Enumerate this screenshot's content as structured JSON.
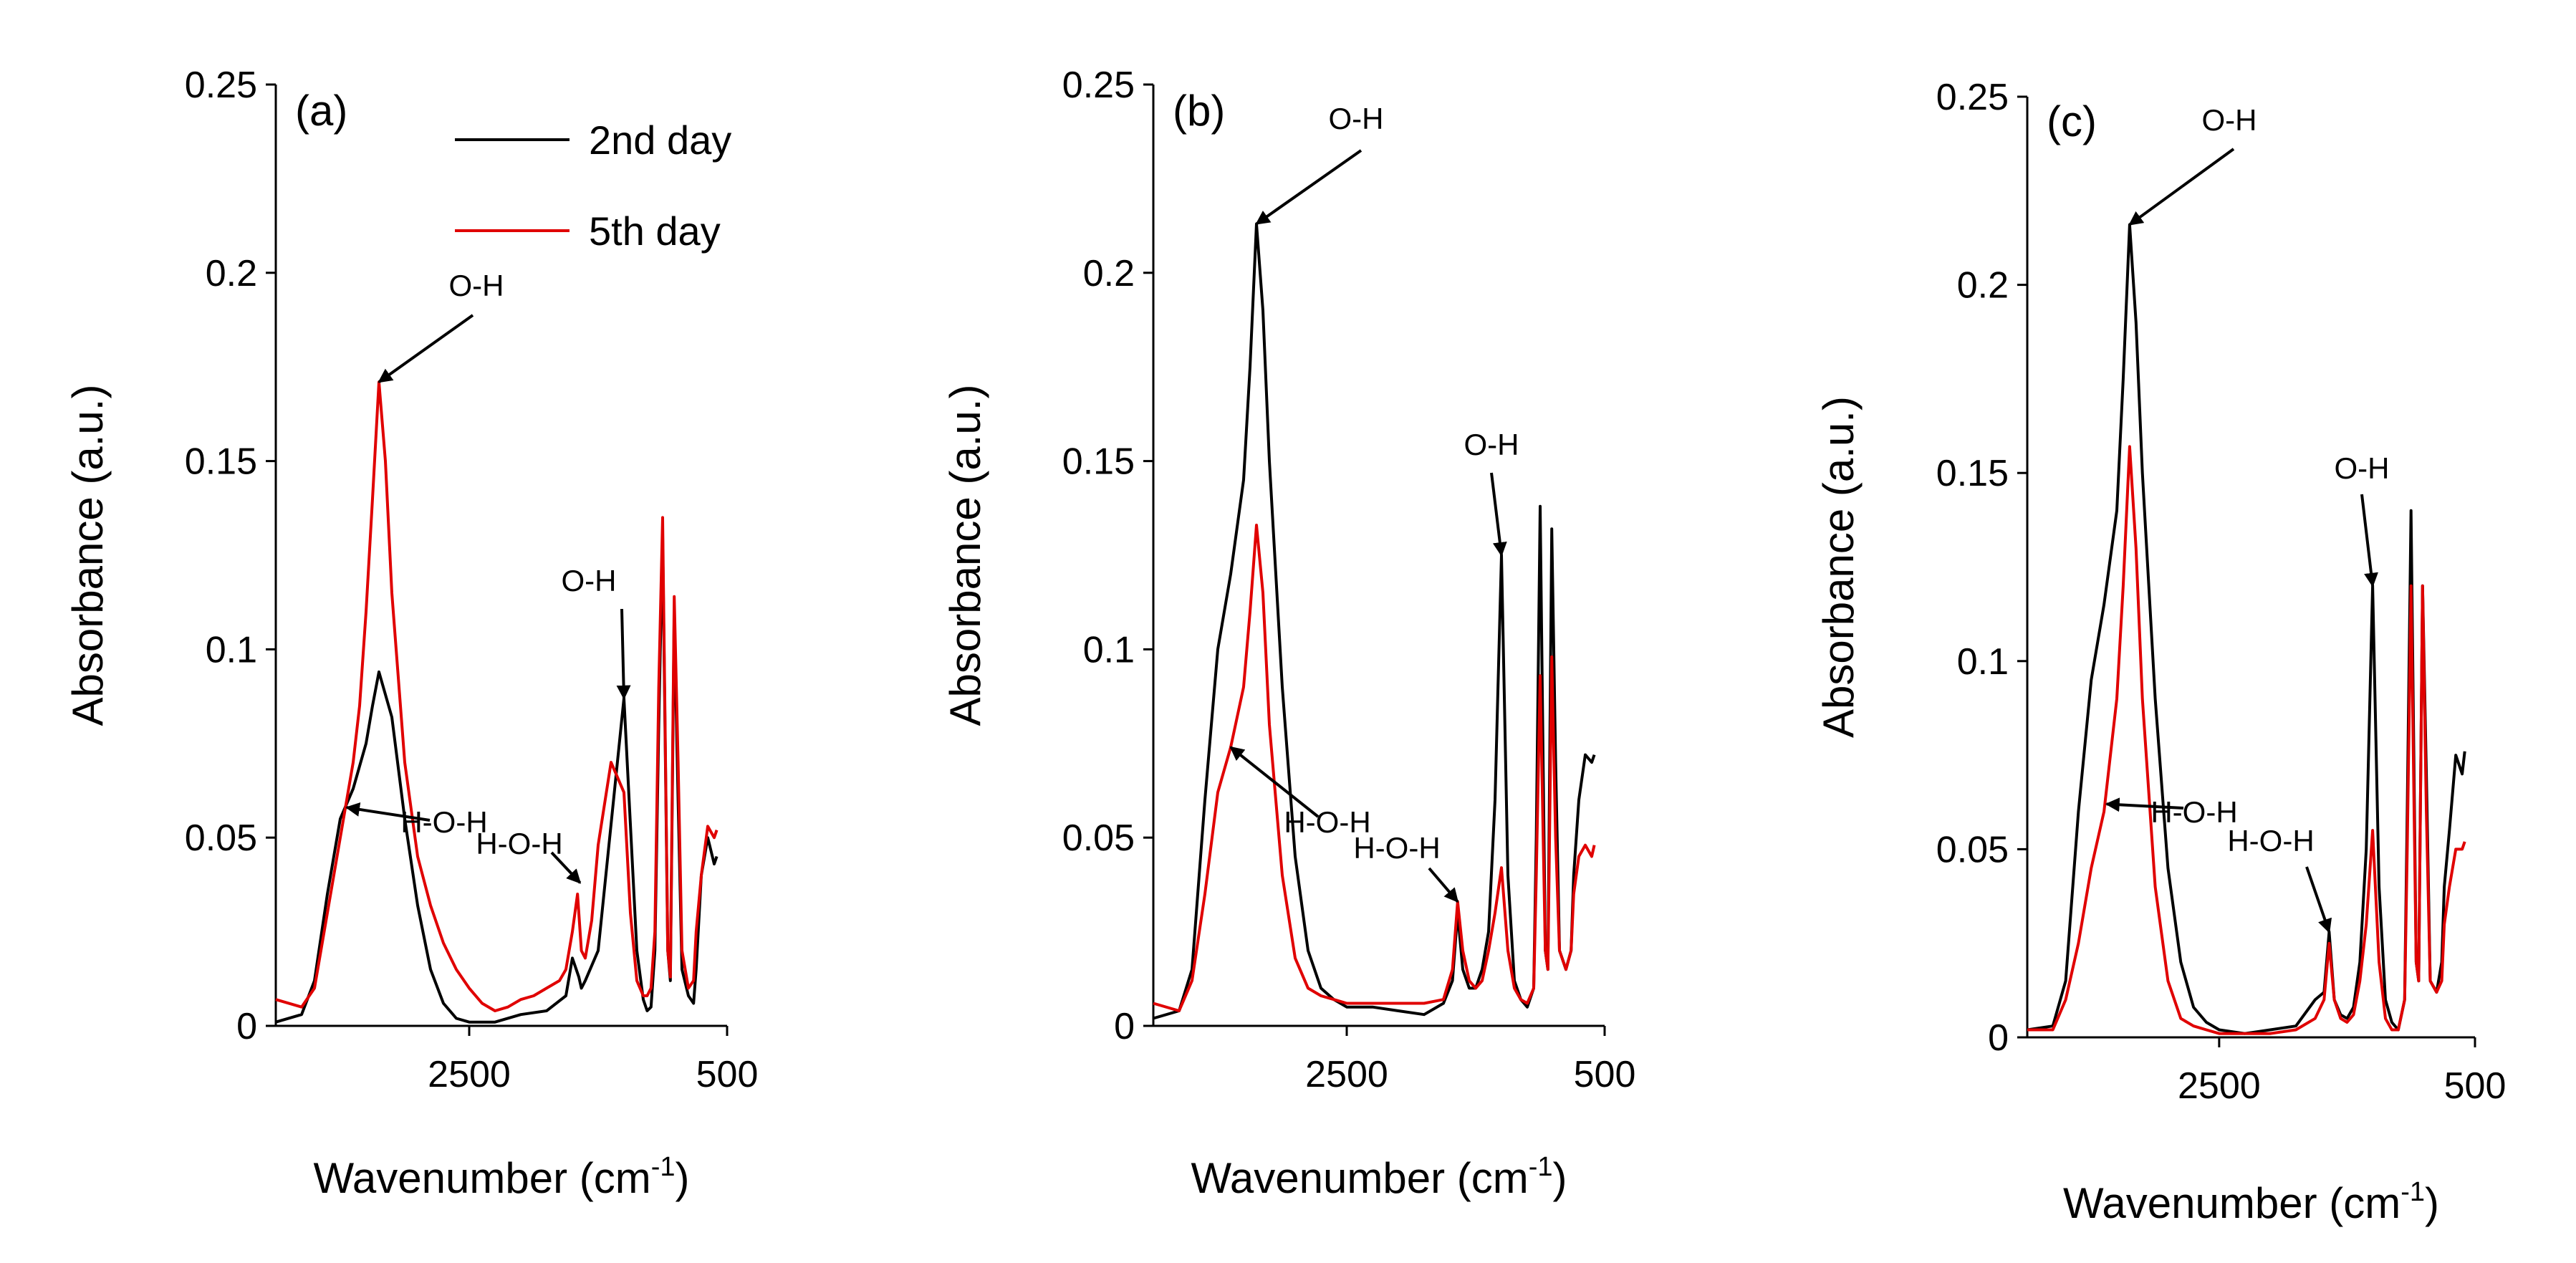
{
  "chart_data": [
    {
      "type": "line",
      "panel_label": "(a)",
      "xlabel": "Wavenumber (cm",
      "xlabel_sup": "-1",
      "xlabel_end": ")",
      "ylabel": "Absorbance (a.u.)",
      "xlim": [
        4000,
        500
      ],
      "ylim": [
        0,
        0.25
      ],
      "yticks": [
        0,
        0.05,
        0.1,
        0.15,
        0.2,
        0.25
      ],
      "ytick_labels": [
        "0",
        "0.05",
        "0.1",
        "0.15",
        "0.2",
        "0.25"
      ],
      "xticks": [
        2500,
        500
      ],
      "xtick_labels": [
        "2500",
        "500"
      ],
      "legend": {
        "placement": "top-right",
        "entries": [
          "2nd day",
          "5th day"
        ]
      },
      "series": [
        {
          "name": "2nd day",
          "color": "#000000",
          "x": [
            4000,
            3800,
            3700,
            3600,
            3500,
            3400,
            3300,
            3250,
            3200,
            3100,
            3000,
            2900,
            2800,
            2700,
            2600,
            2500,
            2300,
            2100,
            1900,
            1750,
            1700,
            1650,
            1630,
            1600,
            1500,
            1300,
            1200,
            1150,
            1120,
            1090,
            1060,
            1030,
            1000,
            960,
            940,
            910,
            880,
            850,
            800,
            760,
            740,
            700,
            650,
            600,
            580
          ],
          "y": [
            0.001,
            0.003,
            0.012,
            0.035,
            0.055,
            0.063,
            0.075,
            0.085,
            0.094,
            0.082,
            0.055,
            0.032,
            0.015,
            0.006,
            0.002,
            0.001,
            0.001,
            0.003,
            0.004,
            0.008,
            0.018,
            0.013,
            0.01,
            0.012,
            0.02,
            0.087,
            0.02,
            0.007,
            0.004,
            0.005,
            0.02,
            0.08,
            0.13,
            0.02,
            0.012,
            0.11,
            0.06,
            0.015,
            0.008,
            0.006,
            0.015,
            0.04,
            0.05,
            0.043,
            0.045
          ]
        },
        {
          "name": "5th day",
          "color": "#e00000",
          "x": [
            4000,
            3800,
            3700,
            3600,
            3500,
            3400,
            3350,
            3300,
            3250,
            3200,
            3150,
            3100,
            3000,
            2900,
            2800,
            2700,
            2600,
            2500,
            2400,
            2300,
            2200,
            2100,
            2000,
            1900,
            1800,
            1750,
            1700,
            1660,
            1630,
            1600,
            1550,
            1500,
            1400,
            1300,
            1250,
            1200,
            1150,
            1120,
            1090,
            1060,
            1030,
            1000,
            960,
            940,
            910,
            880,
            850,
            800,
            760,
            740,
            700,
            650,
            600,
            580
          ],
          "y": [
            0.007,
            0.005,
            0.01,
            0.03,
            0.05,
            0.07,
            0.085,
            0.11,
            0.14,
            0.171,
            0.15,
            0.115,
            0.07,
            0.045,
            0.032,
            0.022,
            0.015,
            0.01,
            0.006,
            0.004,
            0.005,
            0.007,
            0.008,
            0.01,
            0.012,
            0.015,
            0.025,
            0.035,
            0.02,
            0.018,
            0.028,
            0.048,
            0.07,
            0.062,
            0.03,
            0.012,
            0.008,
            0.008,
            0.01,
            0.025,
            0.09,
            0.135,
            0.02,
            0.013,
            0.114,
            0.07,
            0.02,
            0.01,
            0.012,
            0.025,
            0.04,
            0.053,
            0.05,
            0.052
          ]
        }
      ],
      "annotations": [
        {
          "text": "O-H",
          "target_x": 3200,
          "target_y": 0.171
        },
        {
          "text": "H-O-H",
          "target_x": 3450,
          "target_y": 0.058
        },
        {
          "text": "H-O-H",
          "target_x": 1640,
          "target_y": 0.038
        },
        {
          "text": "O-H",
          "target_x": 1300,
          "target_y": 0.087
        }
      ]
    },
    {
      "type": "line",
      "panel_label": "(b)",
      "xlabel": "Wavenumber (cm",
      "xlabel_sup": "-1",
      "xlabel_end": ")",
      "ylabel": "Absorbance (a.u.)",
      "xlim": [
        4000,
        500
      ],
      "ylim": [
        0,
        0.25
      ],
      "yticks": [
        0,
        0.05,
        0.1,
        0.15,
        0.2,
        0.25
      ],
      "ytick_labels": [
        "0",
        "0.05",
        "0.1",
        "0.15",
        "0.2",
        "0.25"
      ],
      "xticks": [
        2500,
        500
      ],
      "xtick_labels": [
        "2500",
        "500"
      ],
      "series": [
        {
          "name": "2nd day",
          "color": "#000000",
          "x": [
            4000,
            3800,
            3700,
            3600,
            3500,
            3400,
            3300,
            3250,
            3200,
            3150,
            3100,
            3000,
            2900,
            2800,
            2700,
            2600,
            2500,
            2300,
            2100,
            1900,
            1750,
            1680,
            1640,
            1600,
            1550,
            1500,
            1450,
            1400,
            1350,
            1300,
            1250,
            1200,
            1150,
            1100,
            1050,
            1030,
            1000,
            960,
            940,
            910,
            880,
            850,
            800,
            760,
            740,
            700,
            650,
            600,
            580
          ],
          "y": [
            0.002,
            0.004,
            0.015,
            0.06,
            0.1,
            0.12,
            0.145,
            0.175,
            0.213,
            0.19,
            0.15,
            0.09,
            0.045,
            0.02,
            0.01,
            0.007,
            0.005,
            0.005,
            0.004,
            0.003,
            0.006,
            0.012,
            0.03,
            0.015,
            0.01,
            0.01,
            0.015,
            0.025,
            0.06,
            0.125,
            0.04,
            0.012,
            0.007,
            0.005,
            0.01,
            0.05,
            0.138,
            0.02,
            0.015,
            0.132,
            0.07,
            0.02,
            0.015,
            0.02,
            0.04,
            0.06,
            0.072,
            0.07,
            0.072
          ]
        },
        {
          "name": "5th day",
          "color": "#e00000",
          "x": [
            4000,
            3800,
            3700,
            3600,
            3500,
            3400,
            3300,
            3250,
            3200,
            3150,
            3100,
            3000,
            2900,
            2800,
            2700,
            2600,
            2500,
            2300,
            2100,
            1900,
            1750,
            1680,
            1640,
            1600,
            1550,
            1500,
            1450,
            1400,
            1350,
            1300,
            1250,
            1200,
            1150,
            1100,
            1050,
            1030,
            1000,
            960,
            940,
            910,
            880,
            850,
            800,
            760,
            740,
            700,
            650,
            600,
            580
          ],
          "y": [
            0.006,
            0.004,
            0.012,
            0.035,
            0.062,
            0.074,
            0.09,
            0.11,
            0.133,
            0.115,
            0.08,
            0.04,
            0.018,
            0.01,
            0.008,
            0.007,
            0.006,
            0.006,
            0.006,
            0.006,
            0.007,
            0.015,
            0.033,
            0.02,
            0.012,
            0.01,
            0.012,
            0.02,
            0.03,
            0.042,
            0.02,
            0.01,
            0.007,
            0.006,
            0.01,
            0.04,
            0.093,
            0.02,
            0.015,
            0.098,
            0.05,
            0.02,
            0.015,
            0.02,
            0.035,
            0.045,
            0.048,
            0.045,
            0.048
          ]
        }
      ],
      "annotations": [
        {
          "text": "O-H",
          "target_x": 3200,
          "target_y": 0.213
        },
        {
          "text": "H-O-H",
          "target_x": 3400,
          "target_y": 0.074
        },
        {
          "text": "H-O-H",
          "target_x": 1640,
          "target_y": 0.033
        },
        {
          "text": "O-H",
          "target_x": 1300,
          "target_y": 0.125
        }
      ]
    },
    {
      "type": "line",
      "panel_label": "(c)",
      "xlabel": "Wavenumber (cm",
      "xlabel_sup": "-1",
      "xlabel_end": ")",
      "ylabel": "Absorbance (a.u.)",
      "xlim": [
        4000,
        500
      ],
      "ylim": [
        0,
        0.25
      ],
      "yticks": [
        0,
        0.05,
        0.1,
        0.15,
        0.2,
        0.25
      ],
      "ytick_labels": [
        "0",
        "0.05",
        "0.1",
        "0.15",
        "0.2",
        "0.25"
      ],
      "xticks": [
        2500,
        500
      ],
      "xtick_labels": [
        "2500",
        "500"
      ],
      "series": [
        {
          "name": "2nd day",
          "color": "#000000",
          "x": [
            4000,
            3800,
            3700,
            3600,
            3500,
            3400,
            3300,
            3250,
            3200,
            3150,
            3100,
            3000,
            2900,
            2800,
            2700,
            2600,
            2500,
            2300,
            2100,
            1900,
            1750,
            1680,
            1640,
            1600,
            1550,
            1500,
            1450,
            1400,
            1350,
            1300,
            1250,
            1200,
            1150,
            1100,
            1050,
            1030,
            1000,
            960,
            940,
            910,
            880,
            850,
            800,
            760,
            740,
            700,
            650,
            600,
            580
          ],
          "y": [
            0.002,
            0.003,
            0.015,
            0.06,
            0.095,
            0.115,
            0.14,
            0.175,
            0.216,
            0.19,
            0.15,
            0.09,
            0.045,
            0.02,
            0.008,
            0.004,
            0.002,
            0.001,
            0.002,
            0.003,
            0.01,
            0.012,
            0.028,
            0.01,
            0.006,
            0.005,
            0.008,
            0.02,
            0.05,
            0.12,
            0.04,
            0.01,
            0.004,
            0.002,
            0.01,
            0.06,
            0.14,
            0.02,
            0.015,
            0.12,
            0.07,
            0.015,
            0.012,
            0.02,
            0.04,
            0.055,
            0.075,
            0.07,
            0.076
          ]
        },
        {
          "name": "5th day",
          "color": "#e00000",
          "x": [
            4000,
            3800,
            3700,
            3600,
            3500,
            3400,
            3300,
            3250,
            3200,
            3150,
            3100,
            3000,
            2900,
            2800,
            2700,
            2600,
            2500,
            2300,
            2100,
            1900,
            1750,
            1680,
            1640,
            1600,
            1550,
            1500,
            1450,
            1400,
            1350,
            1300,
            1250,
            1200,
            1150,
            1100,
            1050,
            1030,
            1000,
            960,
            940,
            910,
            880,
            850,
            800,
            760,
            740,
            700,
            650,
            600,
            580
          ],
          "y": [
            0.002,
            0.002,
            0.01,
            0.025,
            0.045,
            0.06,
            0.09,
            0.12,
            0.157,
            0.13,
            0.09,
            0.04,
            0.015,
            0.005,
            0.003,
            0.002,
            0.001,
            0.001,
            0.001,
            0.002,
            0.005,
            0.01,
            0.025,
            0.01,
            0.005,
            0.004,
            0.006,
            0.015,
            0.03,
            0.055,
            0.02,
            0.005,
            0.002,
            0.002,
            0.01,
            0.05,
            0.12,
            0.02,
            0.015,
            0.12,
            0.06,
            0.015,
            0.012,
            0.015,
            0.03,
            0.04,
            0.05,
            0.05,
            0.052
          ]
        }
      ],
      "annotations": [
        {
          "text": "O-H",
          "target_x": 3200,
          "target_y": 0.216
        },
        {
          "text": "H-O-H",
          "target_x": 3380,
          "target_y": 0.062
        },
        {
          "text": "H-O-H",
          "target_x": 1640,
          "target_y": 0.028
        },
        {
          "text": "O-H",
          "target_x": 1300,
          "target_y": 0.12
        }
      ]
    }
  ]
}
